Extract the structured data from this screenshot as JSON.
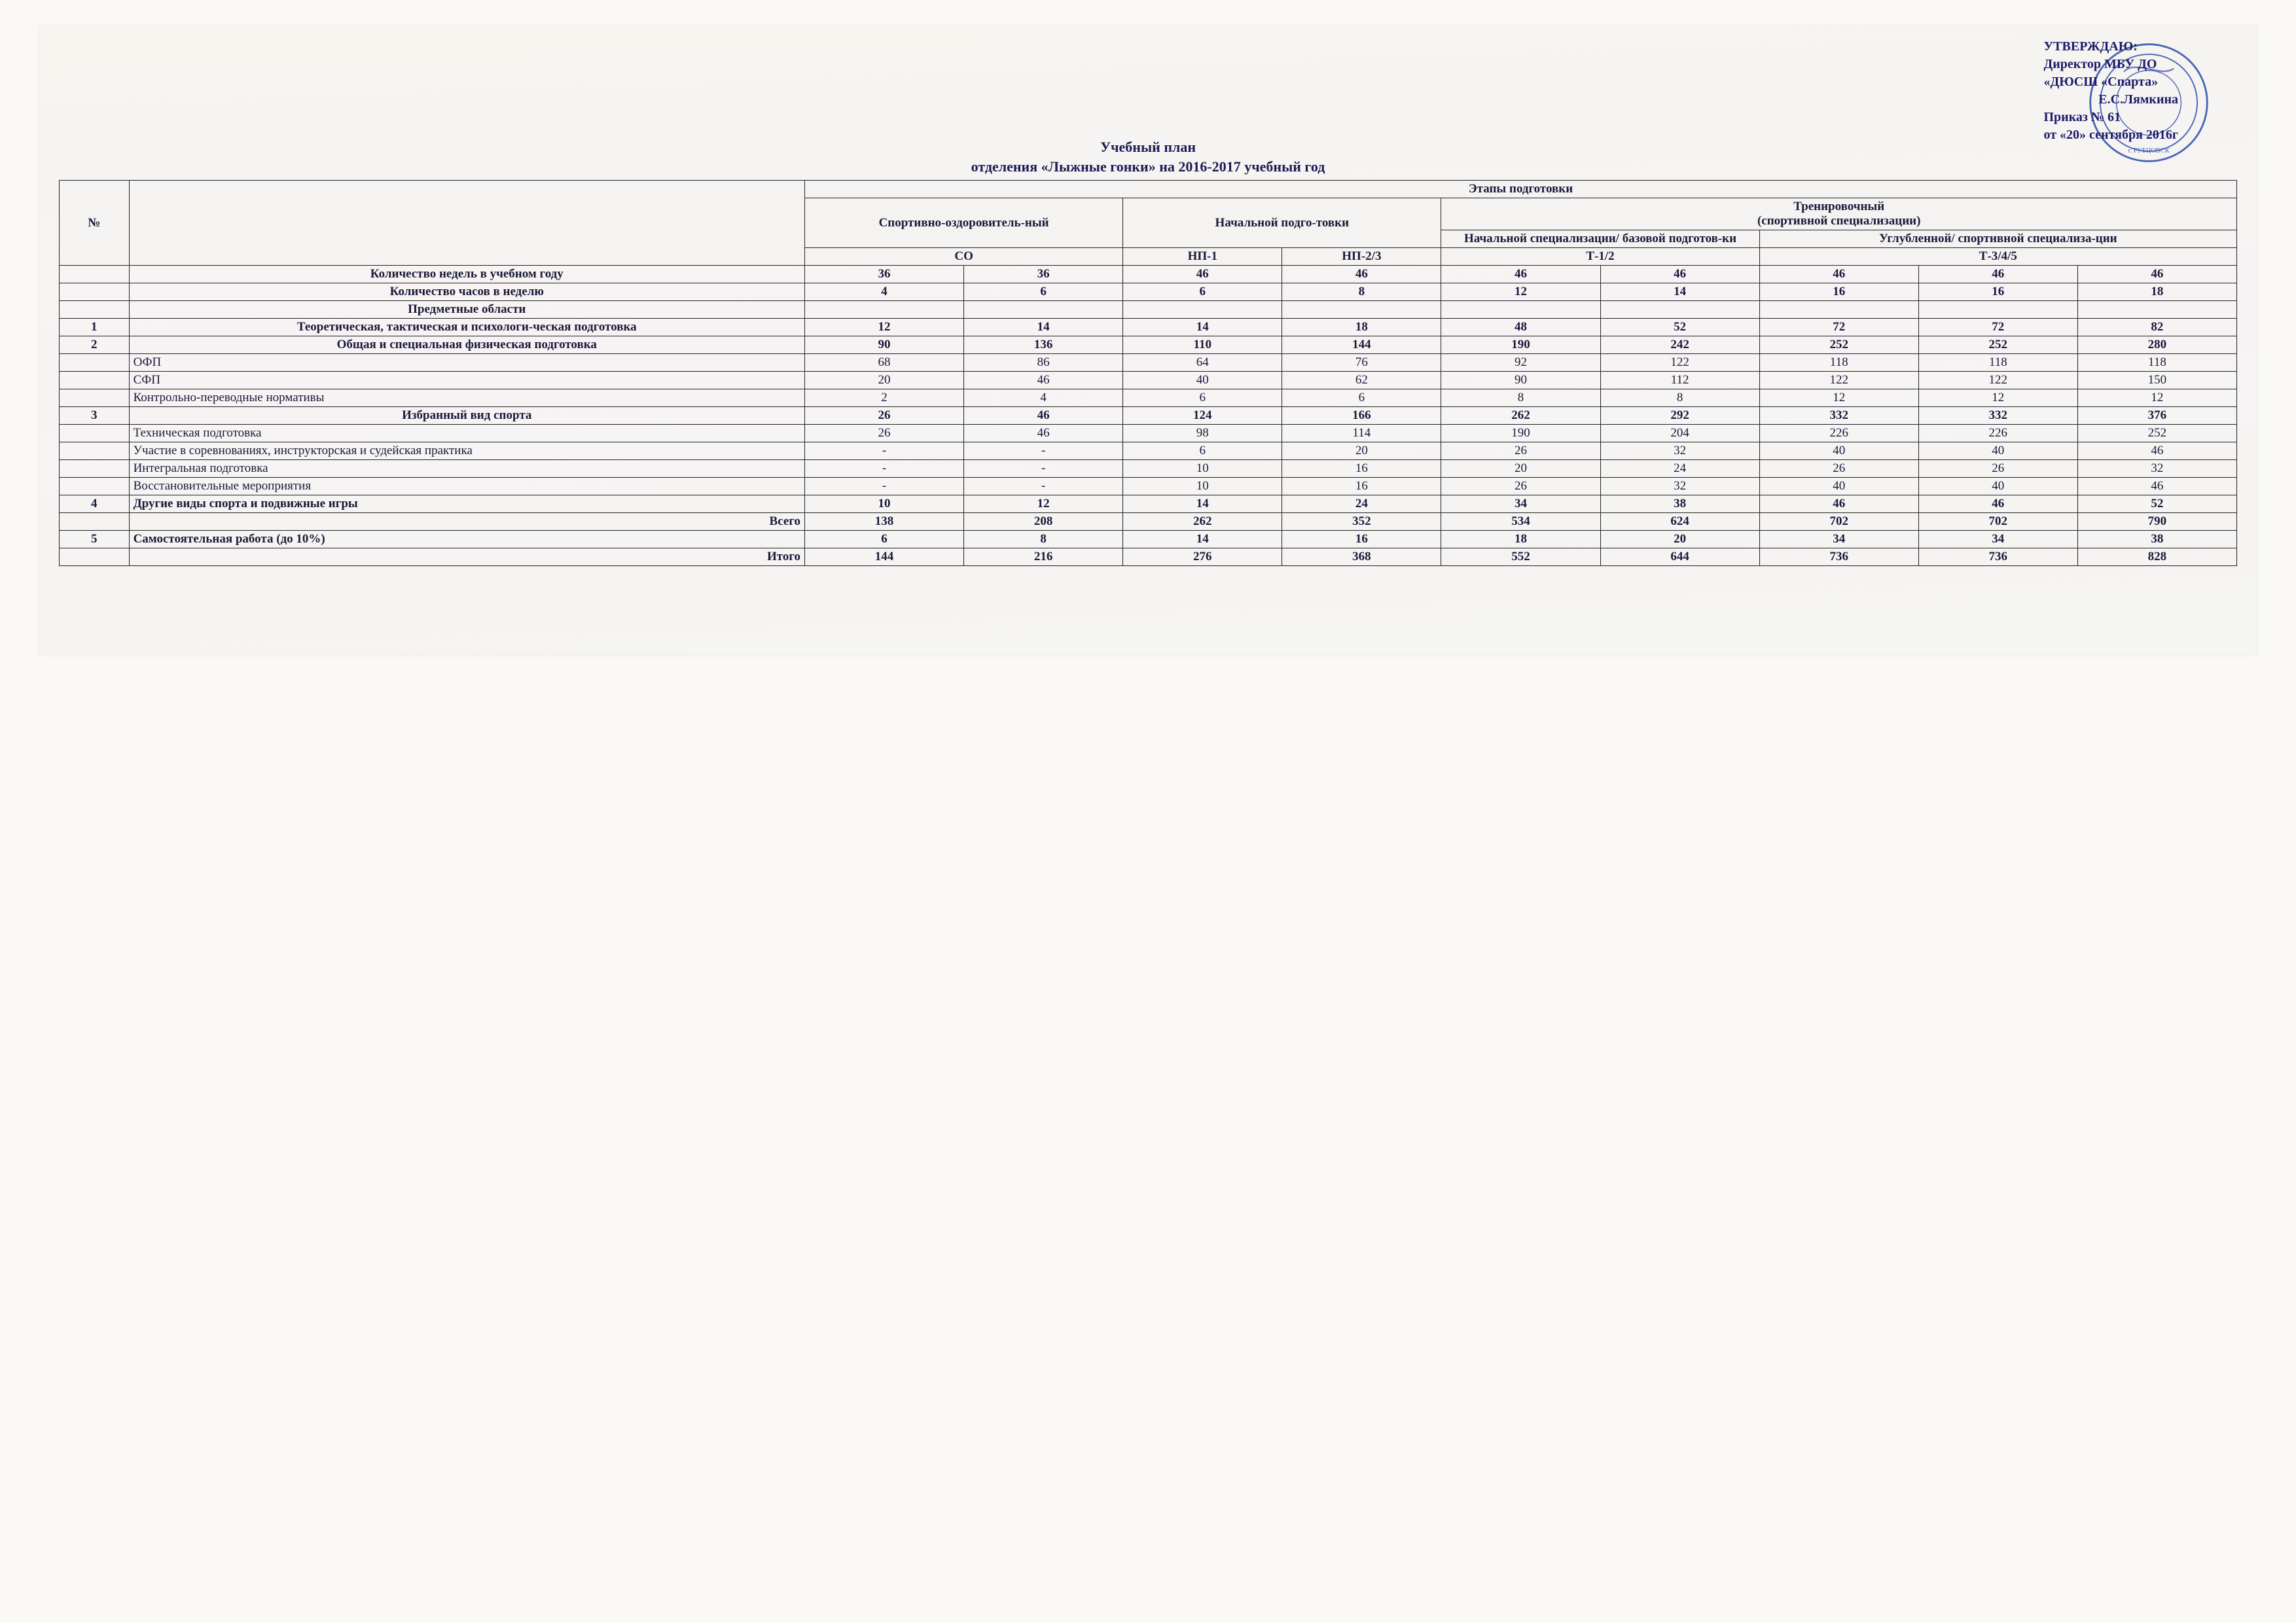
{
  "approval": {
    "line1": "УТВЕРЖДАЮ:",
    "line2": "Директор МБУ ДО",
    "line3": "«ДЮСШ «Спарта»",
    "signer_initials": "Е.С.Лямкина",
    "order_line": "Приказ № 61",
    "date_line": "от «20» сентября 2016г",
    "stamp_color": "#2b4da8",
    "signature_color": "#3f3fb0"
  },
  "title": {
    "line1": "Учебный план",
    "line2": "отделения «Лыжные гонки» на 2016-2017 учебный год"
  },
  "table": {
    "header": {
      "num": "№",
      "stages": "Этапы подготовки",
      "col_sport_health": "Спортивно-оздоровитель-ный",
      "col_initial": "Начальной подго-товки",
      "col_training": "Тренировочный\n(спортивной специализации)",
      "col_training_basic": "Начальной специализации/ базовой подготов-ки",
      "col_training_deep": "Углубленной/ спортивной специализа-ции",
      "code_so": "СО",
      "code_np1": "НП-1",
      "code_np23": "НП-2/3",
      "code_t12": "Т-1/2",
      "code_t345": "Т-3/4/5"
    },
    "rows": [
      {
        "num": "",
        "name": "Количество недель в учебном году",
        "bold": true,
        "center_name": true,
        "v": [
          "36",
          "36",
          "46",
          "46",
          "46",
          "46",
          "46",
          "46",
          "46"
        ]
      },
      {
        "num": "",
        "name": "Количество часов в неделю",
        "bold": true,
        "center_name": true,
        "v": [
          "4",
          "6",
          "6",
          "8",
          "12",
          "14",
          "16",
          "16",
          "18"
        ]
      },
      {
        "num": "",
        "name": "Предметные области",
        "bold": true,
        "center_name": true,
        "v": [
          "",
          "",
          "",
          "",
          "",
          "",
          "",
          "",
          ""
        ]
      },
      {
        "num": "1",
        "name": "Теоретическая, тактическая и психологи-ческая подготовка",
        "bold": true,
        "center_name": true,
        "v": [
          "12",
          "14",
          "14",
          "18",
          "48",
          "52",
          "72",
          "72",
          "82"
        ]
      },
      {
        "num": "2",
        "name": "Общая  и специальная физическая подготовка",
        "bold": true,
        "center_name": true,
        "v": [
          "90",
          "136",
          "110",
          "144",
          "190",
          "242",
          "252",
          "252",
          "280"
        ]
      },
      {
        "num": "",
        "name": "ОФП",
        "bold": false,
        "v": [
          "68",
          "86",
          "64",
          "76",
          "92",
          "122",
          "118",
          "118",
          "118"
        ]
      },
      {
        "num": "",
        "name": "СФП",
        "bold": false,
        "v": [
          "20",
          "46",
          "40",
          "62",
          "90",
          "112",
          "122",
          "122",
          "150"
        ]
      },
      {
        "num": "",
        "name": "Контрольно-переводные нормативы",
        "bold": false,
        "v": [
          "2",
          "4",
          "6",
          "6",
          "8",
          "8",
          "12",
          "12",
          "12"
        ]
      },
      {
        "num": "3",
        "name": "Избранный вид спорта",
        "bold": true,
        "center_name": true,
        "v": [
          "26",
          "46",
          "124",
          "166",
          "262",
          "292",
          "332",
          "332",
          "376"
        ]
      },
      {
        "num": "",
        "name": "Техническая подготовка",
        "bold": false,
        "v": [
          "26",
          "46",
          "98",
          "114",
          "190",
          "204",
          "226",
          "226",
          "252"
        ]
      },
      {
        "num": "",
        "name": "Участие в соревнованиях, инструкторская и судейская практика",
        "bold": false,
        "v": [
          "-",
          "-",
          "6",
          "20",
          "26",
          "32",
          "40",
          "40",
          "46"
        ]
      },
      {
        "num": "",
        "name": "Интегральная подготовка",
        "bold": false,
        "v": [
          "-",
          "-",
          "10",
          "16",
          "20",
          "24",
          "26",
          "26",
          "32"
        ]
      },
      {
        "num": "",
        "name": "Восстановительные мероприятия",
        "bold": false,
        "v": [
          "-",
          "-",
          "10",
          "16",
          "26",
          "32",
          "40",
          "40",
          "46"
        ]
      },
      {
        "num": "4",
        "name": "Другие виды спорта  и подвижные игры",
        "bold": true,
        "v": [
          "10",
          "12",
          "14",
          "24",
          "34",
          "38",
          "46",
          "46",
          "52"
        ]
      },
      {
        "num": "",
        "name": "Всего",
        "bold": true,
        "right_name": true,
        "v": [
          "138",
          "208",
          "262",
          "352",
          "534",
          "624",
          "702",
          "702",
          "790"
        ]
      },
      {
        "num": "5",
        "name": "Самостоятельная работа (до 10%)",
        "bold": true,
        "v": [
          "6",
          "8",
          "14",
          "16",
          "18",
          "20",
          "34",
          "34",
          "38"
        ]
      },
      {
        "num": "",
        "name": "Итого",
        "bold": true,
        "right_name": true,
        "v": [
          "144",
          "216",
          "276",
          "368",
          "552",
          "644",
          "736",
          "736",
          "828"
        ]
      }
    ]
  }
}
